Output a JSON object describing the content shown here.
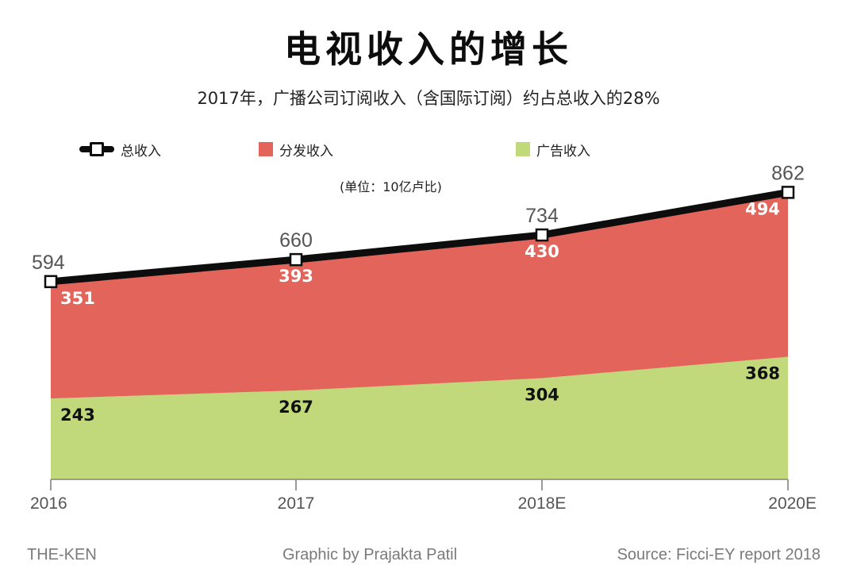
{
  "colors": {
    "total": "#0d0d0d",
    "distribution": "#e2645a",
    "advertising": "#c1d97b",
    "axis": "#9a9a9a"
  },
  "legend": {
    "total": "总收入",
    "distribution": "分发收入",
    "advertising": "广告收入"
  },
  "unit_note": "(单位：10亿卢比)",
  "footer": {
    "left": "THE-KEN",
    "center": "Graphic by Prajakta Patil",
    "right": "Source: Ficci-EY report 2018"
  },
  "chart_data": {
    "type": "area",
    "title": "电视收入的增长",
    "subtitle": "2017年，广播公司订阅收入（含国际订阅）约占总收入的28%",
    "categories": [
      "2016",
      "2017",
      "2018E",
      "2020E"
    ],
    "stacked": true,
    "series": [
      {
        "name": "广告收入",
        "values": [
          243,
          267,
          304,
          368
        ]
      },
      {
        "name": "分发收入",
        "values": [
          351,
          393,
          430,
          494
        ]
      },
      {
        "name": "总收入",
        "values": [
          594,
          660,
          734,
          862
        ],
        "style": "line"
      }
    ],
    "ylim": [
      0,
      900
    ],
    "xlabel": "",
    "ylabel": "",
    "grid": false,
    "legend_position": "top"
  }
}
